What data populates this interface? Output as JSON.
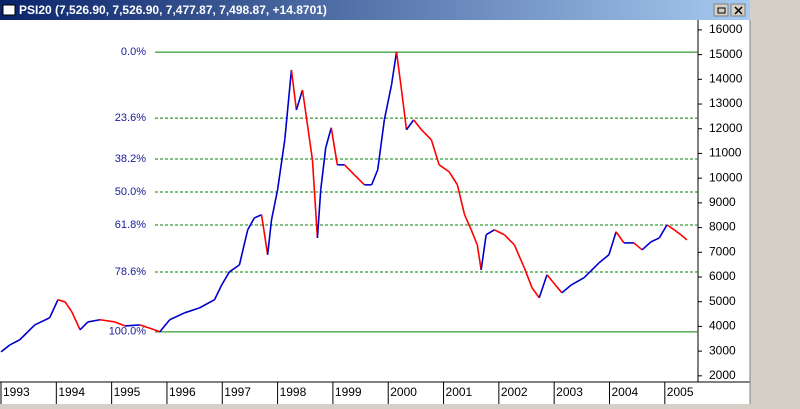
{
  "chart_data": {
    "type": "line",
    "title": "PSI20 (7,526.90, 7,526.90, 7,477.87, 7,498.87, +14.8701)",
    "x": [
      1993.0,
      1993.16,
      1993.34,
      1993.61,
      1993.88,
      1994.03,
      1994.16,
      1994.28,
      1994.43,
      1994.57,
      1994.79,
      1995.06,
      1995.24,
      1995.51,
      1995.78,
      1995.87,
      1996.05,
      1996.32,
      1996.59,
      1996.86,
      1996.99,
      1997.13,
      1997.31,
      1997.46,
      1997.58,
      1997.71,
      1997.82,
      1997.89,
      1998.0,
      1998.13,
      1998.25,
      1998.34,
      1998.45,
      1998.54,
      1998.63,
      1998.72,
      1998.78,
      1998.87,
      1998.97,
      1999.08,
      1999.21,
      1999.39,
      1999.57,
      1999.7,
      1999.81,
      1999.93,
      2000.06,
      2000.15,
      2000.24,
      2000.33,
      2000.46,
      2000.6,
      2000.78,
      2000.92,
      2001.1,
      2001.25,
      2001.38,
      2001.5,
      2001.61,
      2001.68,
      2001.77,
      2001.92,
      2002.1,
      2002.28,
      2002.46,
      2002.6,
      2002.73,
      2002.87,
      2003.02,
      2003.14,
      2003.31,
      2003.54,
      2003.81,
      2003.99,
      2004.12,
      2004.26,
      2004.44,
      2004.59,
      2004.75,
      2004.9,
      2005.04,
      2005.17,
      2005.29,
      2005.4
    ],
    "series": [
      {
        "name": "PSI20",
        "up_color": "#0000cc",
        "down_color": "#ff0000",
        "values": [
          2970,
          3250,
          3460,
          4060,
          4350,
          5080,
          4990,
          4590,
          3860,
          4180,
          4270,
          4180,
          4020,
          4060,
          3860,
          3780,
          4270,
          4550,
          4750,
          5080,
          5680,
          6210,
          6490,
          7910,
          8390,
          8520,
          6900,
          8310,
          9530,
          11550,
          14380,
          12760,
          13570,
          12160,
          10740,
          7580,
          9530,
          11230,
          12040,
          10540,
          10540,
          10130,
          9730,
          9730,
          10340,
          12360,
          13780,
          15110,
          13570,
          11960,
          12360,
          11960,
          11550,
          10540,
          10260,
          9730,
          8520,
          7910,
          7300,
          6290,
          7710,
          7910,
          7710,
          7300,
          6370,
          5560,
          5160,
          6090,
          5680,
          5360,
          5680,
          5970,
          6570,
          6900,
          7830,
          7380,
          7380,
          7100,
          7420,
          7580,
          8110,
          7910,
          7710,
          7500
        ]
      }
    ],
    "xlim": [
      1993.0,
      2005.6
    ],
    "xticks": [
      1993,
      1994,
      1995,
      1996,
      1997,
      1998,
      1999,
      2000,
      2001,
      2002,
      2003,
      2004,
      2005
    ],
    "ylim": [
      1750,
      16320
    ],
    "yticks": [
      2000,
      3000,
      4000,
      5000,
      6000,
      7000,
      8000,
      9000,
      10000,
      11000,
      12000,
      13000,
      14000,
      15000,
      16000
    ],
    "fib_high": 15100,
    "fib_low": 3780,
    "fib_color": "#008000",
    "fib_levels": [
      {
        "value": 0,
        "label": "0.0%"
      },
      {
        "value": 23.6,
        "label": "23.6%"
      },
      {
        "value": 38.2,
        "label": "38.2%"
      },
      {
        "value": 50,
        "label": "50.0%"
      },
      {
        "value": 61.8,
        "label": "61.8%"
      },
      {
        "value": 78.6,
        "label": "78.6%"
      },
      {
        "value": 100,
        "label": "100.0%"
      }
    ]
  }
}
